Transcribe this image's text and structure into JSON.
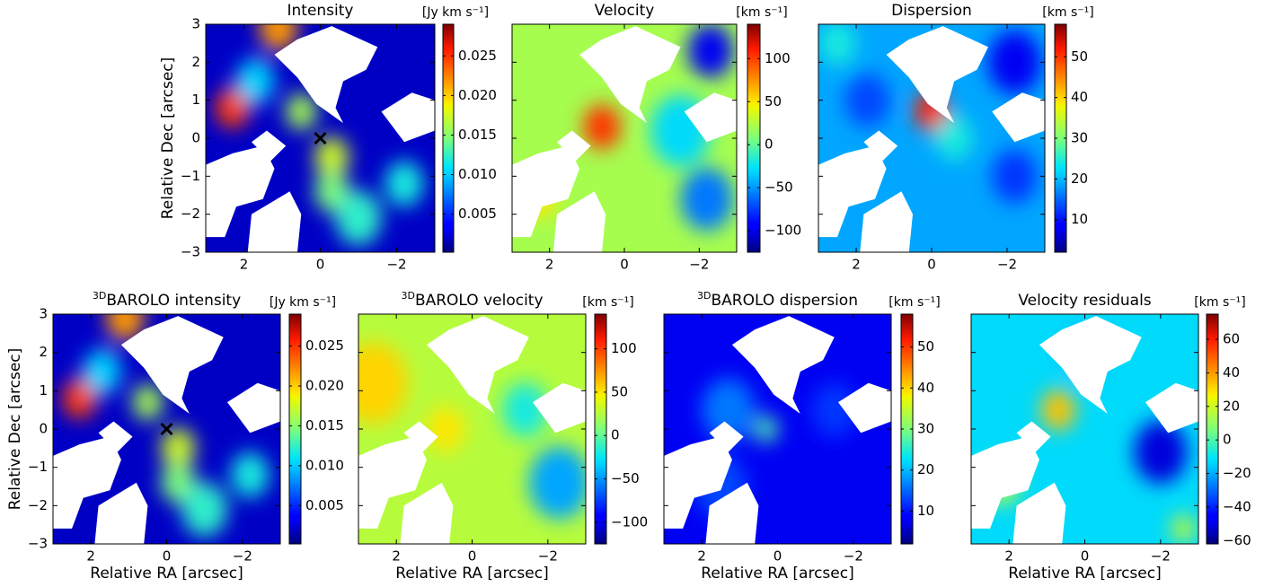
{
  "chart_data": [
    {
      "type": "heatmap",
      "title": "Intensity",
      "colorbar_label": "[Jy km s⁻¹]",
      "colormap": "jet",
      "ylabel": "Relative Dec [arcsec]",
      "xlim": [
        3,
        -3
      ],
      "ylim": [
        -3,
        3
      ],
      "xticks": [
        2,
        0,
        {
          "value": -2,
          "label": "−2"
        }
      ],
      "yticks": [
        {
          "value": -3,
          "label": "−3"
        },
        {
          "value": -2,
          "label": "−2"
        },
        {
          "value": -1,
          "label": "−1"
        },
        0,
        1,
        2,
        3
      ],
      "ytick_labels": true,
      "clim": [
        0.0002,
        0.029
      ],
      "cticks": [
        0.005,
        {
          "value": 0.01,
          "label": "0.010"
        },
        0.015,
        {
          "value": 0.02,
          "label": "0.020"
        },
        0.025
      ],
      "cross": {
        "x": 0,
        "y": 0
      }
    },
    {
      "type": "heatmap",
      "title": "Velocity",
      "colorbar_label": "[km s⁻¹]",
      "colormap": "jet",
      "xlim": [
        3,
        -3
      ],
      "ylim": [
        -3,
        3
      ],
      "xticks": [
        2,
        0,
        {
          "value": -2,
          "label": "−2"
        }
      ],
      "yticks": [
        -3,
        -2,
        -1,
        0,
        1,
        2,
        3
      ],
      "ytick_labels": false,
      "clim": [
        -125,
        140
      ],
      "cticks": [
        {
          "value": -100,
          "label": "−100"
        },
        {
          "value": -50,
          "label": "−50"
        },
        0,
        50,
        100
      ]
    },
    {
      "type": "heatmap",
      "title": "Dispersion",
      "colorbar_label": "[km s⁻¹]",
      "colormap": "jet",
      "xlim": [
        3,
        -3
      ],
      "ylim": [
        -3,
        3
      ],
      "xticks": [
        2,
        0,
        {
          "value": -2,
          "label": "−2"
        }
      ],
      "yticks": [
        -3,
        -2,
        -1,
        0,
        1,
        2,
        3
      ],
      "ytick_labels": false,
      "clim": [
        2,
        58
      ],
      "cticks": [
        10,
        20,
        30,
        40,
        50
      ]
    },
    {
      "type": "heatmap",
      "title_superscript": "3D",
      "title": "BAROLO intensity",
      "colorbar_label": "[Jy km s⁻¹]",
      "colormap": "jet",
      "xlabel": "Relative RA [arcsec]",
      "ylabel": "Relative Dec [arcsec]",
      "xlim": [
        3,
        -3
      ],
      "ylim": [
        -3,
        3
      ],
      "xticks": [
        2,
        0,
        {
          "value": -2,
          "label": "−2"
        }
      ],
      "yticks": [
        {
          "value": -3,
          "label": "−3"
        },
        {
          "value": -2,
          "label": "−2"
        },
        {
          "value": -1,
          "label": "−1"
        },
        0,
        1,
        2,
        3
      ],
      "ytick_labels": true,
      "clim": [
        0.0002,
        0.029
      ],
      "cticks": [
        0.005,
        {
          "value": 0.01,
          "label": "0.010"
        },
        0.015,
        {
          "value": 0.02,
          "label": "0.020"
        },
        0.025
      ],
      "cross": {
        "x": 0,
        "y": 0
      }
    },
    {
      "type": "heatmap",
      "title_superscript": "3D",
      "title": "BAROLO  velocity",
      "colorbar_label": "[km s⁻¹]",
      "colormap": "jet",
      "xlabel": "Relative RA [arcsec]",
      "xlim": [
        3,
        -3
      ],
      "ylim": [
        -3,
        3
      ],
      "xticks": [
        2,
        0,
        {
          "value": -2,
          "label": "−2"
        }
      ],
      "yticks": [
        -3,
        -2,
        -1,
        0,
        1,
        2,
        3
      ],
      "ytick_labels": false,
      "clim": [
        -125,
        140
      ],
      "cticks": [
        {
          "value": -100,
          "label": "−100"
        },
        {
          "value": -50,
          "label": "−50"
        },
        0,
        50,
        100
      ]
    },
    {
      "type": "heatmap",
      "title_superscript": "3D",
      "title": "BAROLO dispersion",
      "colorbar_label": "[km s⁻¹]",
      "colormap": "jet",
      "xlabel": "Relative RA [arcsec]",
      "xlim": [
        3,
        -3
      ],
      "ylim": [
        -3,
        3
      ],
      "xticks": [
        2,
        0,
        {
          "value": -2,
          "label": "−2"
        }
      ],
      "yticks": [
        -3,
        -2,
        -1,
        0,
        1,
        2,
        3
      ],
      "ytick_labels": false,
      "clim": [
        2,
        58
      ],
      "cticks": [
        10,
        20,
        30,
        40,
        50
      ]
    },
    {
      "type": "heatmap",
      "title": "Velocity residuals",
      "colorbar_label": "[km s⁻¹]",
      "colormap": "jet",
      "xlabel": "Relative RA [arcsec]",
      "xlim": [
        3,
        -3
      ],
      "ylim": [
        -3,
        3
      ],
      "xticks": [
        2,
        0,
        {
          "value": -2,
          "label": "−2"
        }
      ],
      "yticks": [
        -3,
        -2,
        -1,
        0,
        1,
        2,
        3
      ],
      "ytick_labels": false,
      "clim": [
        -62,
        75
      ],
      "cticks": [
        {
          "value": -60,
          "label": "−60"
        },
        {
          "value": -40,
          "label": "−40"
        },
        {
          "value": -20,
          "label": "−20"
        },
        0,
        20,
        40,
        60
      ]
    }
  ]
}
